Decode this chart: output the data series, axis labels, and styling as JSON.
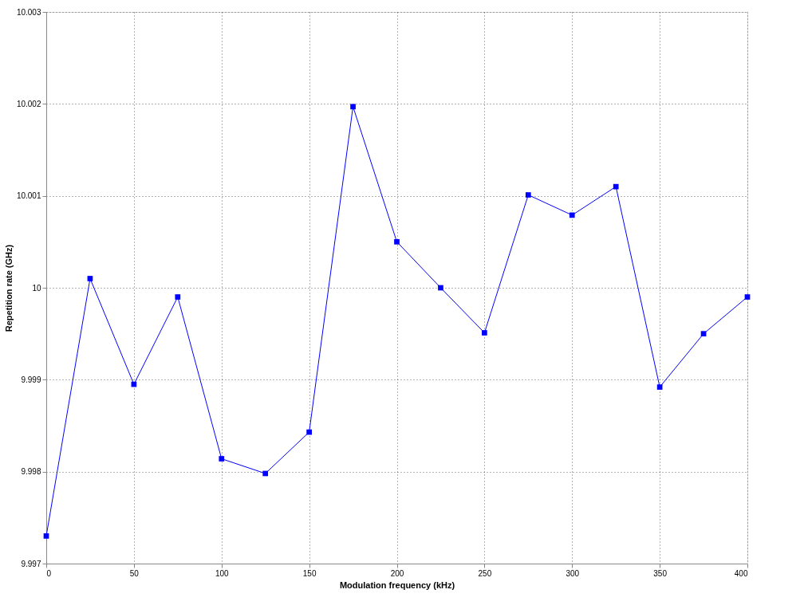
{
  "chart_data": {
    "type": "line",
    "xlabel": "Modulation frequency (kHz)",
    "ylabel": "Repetition rate (GHz)",
    "x": [
      0,
      25,
      50,
      75,
      100,
      125,
      150,
      175,
      200,
      225,
      250,
      275,
      300,
      325,
      350,
      375,
      400
    ],
    "series": [
      {
        "color": "#0000ff",
        "values": [
          9.9973,
          10.0001,
          9.99895,
          9.9999,
          9.99814,
          9.99798,
          9.99843,
          10.00197,
          10.0005,
          10.0,
          9.99951,
          10.00101,
          10.00079,
          10.0011,
          9.99892,
          9.9995,
          9.9999
        ]
      }
    ],
    "xlim": [
      0,
      400
    ],
    "xticks": [
      0,
      50,
      100,
      150,
      200,
      250,
      300,
      350,
      400
    ],
    "ylim": [
      9.997,
      10.003
    ],
    "yticks": [
      9.997,
      9.998,
      9.999,
      10,
      10.001,
      10.002,
      10.003
    ],
    "grid": true,
    "marker": "square",
    "line_style": "solid"
  }
}
